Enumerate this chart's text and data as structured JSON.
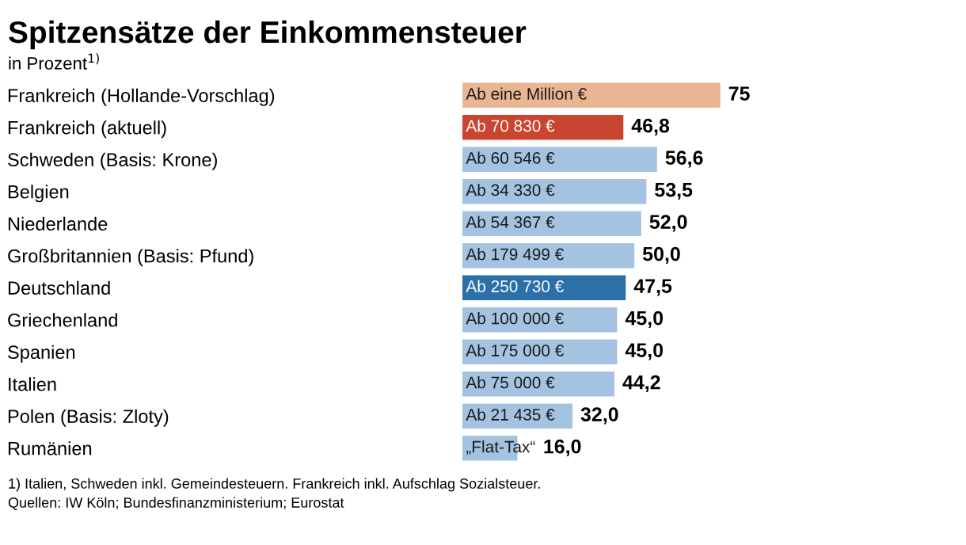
{
  "chart_data": {
    "type": "bar",
    "orientation": "horizontal",
    "title": "Spitzensätze der Einkommensteuer",
    "subtitle": "in Prozent$^{1)}$",
    "categories": [
      "Frankreich (Hollande-Vorschlag)",
      "Frankreich (aktuell)",
      "Schweden (Basis: Krone)",
      "Belgien",
      "Niederlande",
      "Großbritannien (Basis: Pfund)",
      "Deutschland",
      "Griechenland",
      "Spanien",
      "Italien",
      "Polen (Basis: Zloty)",
      "Rumänien"
    ],
    "values": [
      75,
      46.8,
      56.6,
      53.5,
      52.0,
      50.0,
      47.5,
      45.0,
      45.0,
      44.2,
      32.0,
      16.0
    ],
    "colors": [
      "#eab592",
      "#c9452f",
      "#a4c3e1",
      "#a4c3e1",
      "#a4c3e1",
      "#a4c3e1",
      "#2b70a9",
      "#a4c3e1",
      "#a4c3e1",
      "#a4c3e1",
      "#a4c3e1",
      "#a4c3e1"
    ],
    "value_labels": [
      "75",
      "46,8",
      "56,6",
      "53,5",
      "52,0",
      "50,0",
      "47,5",
      "45,0",
      "45,0",
      "44,2",
      "32,0",
      "16,0"
    ],
    "tick_labels": "y",
    "grid": false,
    "legend": false,
    "annotations": [
      {
        "text": "Ab eine Million €",
        "y": "Frankreich (Hollande-Vorschlag)"
      },
      {
        "text": "Ab 70 830 €",
        "y": "Frankreich (aktuell)"
      },
      {
        "text": "Ab 60 546 €",
        "y": "Schweden (Basis: Krone)"
      },
      {
        "text": "Ab 34 330 €",
        "y": "Belgien"
      },
      {
        "text": "Ab 54 367 €",
        "y": "Niederlande"
      },
      {
        "text": "Ab 179 499 €",
        "y": "Großbritannien (Basis: Pfund)"
      },
      {
        "text": "Ab 250 730 €",
        "y": "Deutschland"
      },
      {
        "text": "Ab 100 000 €",
        "y": "Griechenland"
      },
      {
        "text": "Ab 175 000 €",
        "y": "Spanien"
      },
      {
        "text": "Ab 75 000 €",
        "y": "Italien"
      },
      {
        "text": "Ab 21 435 €",
        "y": "Polen (Basis: Zloty)"
      },
      {
        "text": "„Flat-Tax“",
        "y": "Rumänien"
      },
      "1) Italien, Schweden inkl. Gemeindesteuern. Frankreich inkl. Aufschlag Sozialsteuer.",
      "Quellen: IW Köln; Bundesfinanzministerium; Eurostat"
    ]
  }
}
